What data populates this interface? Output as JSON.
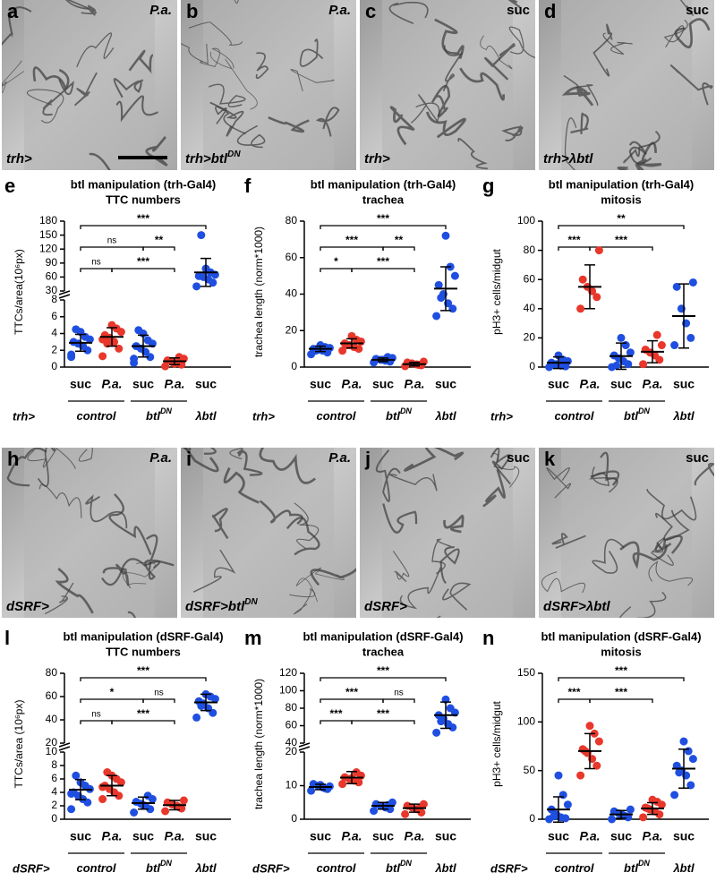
{
  "images": [
    {
      "letter": "a",
      "condition": "P.a.",
      "genotype": "trh>"
    },
    {
      "letter": "b",
      "condition": "P.a.",
      "genotype": "trh>btl",
      "superscript": "DN"
    },
    {
      "letter": "c",
      "condition": "suc",
      "genotype": "trh>"
    },
    {
      "letter": "d",
      "condition": "suc",
      "genotype": "trh>λbtl"
    },
    {
      "letter": "h",
      "condition": "P.a.",
      "genotype": "dSRF>"
    },
    {
      "letter": "i",
      "condition": "P.a.",
      "genotype": "dSRF>btl",
      "superscript": "DN"
    },
    {
      "letter": "j",
      "condition": "suc",
      "genotype": "dSRF>"
    },
    {
      "letter": "k",
      "condition": "suc",
      "genotype": "dSRF>λbtl"
    }
  ],
  "chart_data": [
    {
      "type": "dotplot",
      "panel": "e",
      "title": [
        "btl manipulation (trh-Gal4)",
        "TTC numbers"
      ],
      "ylabel": "TTCs/area(10⁶px)",
      "genotype": "trh>",
      "categories": [
        "suc",
        "P.a.",
        "suc",
        "P.a.",
        "suc"
      ],
      "groups": [
        {
          "label": "control",
          "categories": [
            0,
            1
          ]
        },
        {
          "label": "btl",
          "superscript": "DN",
          "categories": [
            2,
            3
          ]
        },
        {
          "label": "λbtl",
          "categories": [
            4
          ]
        }
      ],
      "point_colors": [
        "#1f4fe0",
        "#e8372b",
        "#1f4fe0",
        "#e8372b",
        "#1f4fe0"
      ],
      "axis_segments": [
        {
          "ylim": [
            0,
            8
          ],
          "yticks": [
            0,
            2,
            4,
            6,
            8
          ]
        },
        {
          "ylim": [
            30,
            180
          ],
          "yticks": [
            30,
            60,
            90,
            120,
            150,
            180
          ]
        }
      ],
      "points": [
        [
          1.2,
          2.0,
          2.5,
          2.8,
          3.0,
          3.3,
          3.6,
          4.2,
          4.5,
          1.5
        ],
        [
          1.3,
          2.2,
          3.0,
          3.5,
          3.8,
          4.2,
          4.6,
          5.0,
          2.8,
          3.3
        ],
        [
          0.5,
          1.2,
          1.8,
          2.2,
          2.5,
          2.8,
          3.2,
          4.0,
          4.4,
          1.0
        ],
        [
          0.1,
          0.3,
          0.5,
          0.6,
          0.8,
          1.0,
          1.2,
          0.4
        ],
        [
          40,
          48,
          55,
          60,
          62,
          65,
          70,
          78,
          150
        ]
      ],
      "mean": [
        2.9,
        3.6,
        2.5,
        0.7,
        70
      ],
      "sd": [
        1.0,
        1.1,
        1.3,
        0.4,
        30
      ],
      "comparisons": [
        [
          {
            "from": 0,
            "to": 4,
            "label": "***"
          }
        ],
        [
          {
            "from": 0,
            "to": 2,
            "label": "ns"
          },
          {
            "from": 2,
            "to": 3,
            "label": "**"
          }
        ],
        [
          {
            "from": 0,
            "to": 1,
            "label": "ns"
          },
          {
            "from": 1,
            "to": 3,
            "label": "***"
          }
        ]
      ]
    },
    {
      "type": "dotplot",
      "panel": "f",
      "title": [
        "btl manipulation (trh-Gal4)",
        "trachea"
      ],
      "ylabel": "trachea length (norm*1000)",
      "genotype": "trh>",
      "categories": [
        "suc",
        "P.a.",
        "suc",
        "P.a.",
        "suc"
      ],
      "groups": [
        {
          "label": "control",
          "categories": [
            0,
            1
          ]
        },
        {
          "label": "btl",
          "superscript": "DN",
          "categories": [
            2,
            3
          ]
        },
        {
          "label": "λbtl",
          "categories": [
            4
          ]
        }
      ],
      "point_colors": [
        "#1f4fe0",
        "#e8372b",
        "#1f4fe0",
        "#e8372b",
        "#1f4fe0"
      ],
      "axis_segments": [
        {
          "ylim": [
            0,
            80
          ],
          "yticks": [
            0,
            20,
            40,
            60,
            80
          ]
        }
      ],
      "points": [
        [
          7,
          8,
          9,
          9.5,
          10,
          10.5,
          11,
          12,
          9
        ],
        [
          9,
          10,
          11,
          12,
          13,
          14,
          15,
          17,
          12
        ],
        [
          2.5,
          3,
          3.5,
          4,
          4.5,
          5,
          5.5,
          4
        ],
        [
          0.5,
          1,
          1.5,
          2,
          2.5,
          3,
          1.2
        ],
        [
          28,
          32,
          35,
          40,
          45,
          50,
          55,
          72,
          38
        ]
      ],
      "mean": [
        10,
        13,
        4,
        1.6,
        43
      ],
      "sd": [
        1.5,
        2.5,
        1,
        1,
        12
      ],
      "comparisons": [
        [
          {
            "from": 0,
            "to": 4,
            "label": "***"
          }
        ],
        [
          {
            "from": 0,
            "to": 2,
            "label": "***"
          },
          {
            "from": 2,
            "to": 3,
            "label": "**"
          }
        ],
        [
          {
            "from": 0,
            "to": 1,
            "label": "*"
          },
          {
            "from": 1,
            "to": 3,
            "label": "***"
          }
        ]
      ]
    },
    {
      "type": "dotplot",
      "panel": "g",
      "title": [
        "btl manipulation (trh-Gal4)",
        "mitosis"
      ],
      "ylabel": "pH3+ cells/midgut",
      "genotype": "trh>",
      "categories": [
        "suc",
        "P.a.",
        "suc",
        "P.a.",
        "suc"
      ],
      "groups": [
        {
          "label": "control",
          "categories": [
            0,
            1
          ]
        },
        {
          "label": "btl",
          "superscript": "DN",
          "categories": [
            2,
            3
          ]
        },
        {
          "label": "λbtl",
          "categories": [
            4
          ]
        }
      ],
      "point_colors": [
        "#1f4fe0",
        "#e8372b",
        "#1f4fe0",
        "#e8372b",
        "#1f4fe0"
      ],
      "axis_segments": [
        {
          "ylim": [
            0,
            100
          ],
          "yticks": [
            0,
            20,
            40,
            60,
            80,
            100
          ]
        }
      ],
      "points": [
        [
          0,
          0.5,
          1,
          2,
          3,
          4,
          5,
          8,
          1.5
        ],
        [
          40,
          48,
          52,
          55,
          60,
          80
        ],
        [
          0,
          2,
          4,
          6,
          8,
          10,
          15,
          20,
          1
        ],
        [
          2,
          5,
          8,
          10,
          12,
          15,
          22
        ],
        [
          15,
          20,
          30,
          40,
          55,
          58
        ]
      ],
      "mean": [
        3,
        55,
        7.5,
        10.5,
        35
      ],
      "sd": [
        4,
        15,
        9,
        7.5,
        22
      ],
      "comparisons": [
        [
          {
            "from": 0,
            "to": 4,
            "label": "**"
          }
        ],
        [
          {
            "from": 0,
            "to": 1,
            "label": "***"
          },
          {
            "from": 1,
            "to": 3,
            "label": "***"
          }
        ]
      ]
    },
    {
      "type": "dotplot",
      "panel": "l",
      "title": [
        "btl manipulation (dSRF-Gal4)",
        "TTC numbers"
      ],
      "ylabel": "TTCs/area (10⁶px)",
      "genotype": "dSRF>",
      "categories": [
        "suc",
        "P.a.",
        "suc",
        "P.a.",
        "suc"
      ],
      "groups": [
        {
          "label": "control",
          "categories": [
            0,
            1
          ]
        },
        {
          "label": "btl",
          "superscript": "DN",
          "categories": [
            2,
            3
          ]
        },
        {
          "label": "λbtl",
          "categories": [
            4
          ]
        }
      ],
      "point_colors": [
        "#1f4fe0",
        "#e8372b",
        "#1f4fe0",
        "#e8372b",
        "#1f4fe0"
      ],
      "axis_segments": [
        {
          "ylim": [
            0,
            10
          ],
          "yticks": [
            0,
            2,
            4,
            6,
            8,
            10
          ]
        },
        {
          "ylim": [
            20,
            80
          ],
          "yticks": [
            20,
            40,
            60,
            80
          ]
        }
      ],
      "points": [
        [
          1.5,
          2.5,
          3,
          3.5,
          4,
          4.5,
          5,
          5.5,
          6.5,
          3.8
        ],
        [
          3,
          3.5,
          4,
          4.5,
          5,
          5.5,
          6,
          6.5,
          7,
          4.8
        ],
        [
          1,
          1.5,
          2,
          2.3,
          2.6,
          3,
          3.5,
          2.1
        ],
        [
          1.2,
          1.6,
          2,
          2.2,
          2.5,
          2.8,
          1.8
        ],
        [
          42,
          46,
          50,
          54,
          56,
          58,
          60,
          62,
          52
        ]
      ],
      "mean": [
        4.4,
        5,
        2.4,
        2.1,
        55
      ],
      "sd": [
        1.5,
        1.5,
        0.9,
        0.7,
        7
      ],
      "comparisons": [
        [
          {
            "from": 0,
            "to": 4,
            "label": "***"
          }
        ],
        [
          {
            "from": 0,
            "to": 2,
            "label": "*"
          },
          {
            "from": 2,
            "to": 3,
            "label": "ns"
          }
        ],
        [
          {
            "from": 0,
            "to": 1,
            "label": "ns"
          },
          {
            "from": 1,
            "to": 3,
            "label": "***"
          }
        ]
      ]
    },
    {
      "type": "dotplot",
      "panel": "m",
      "title": [
        "btl manipulation (dSRF-Gal4)",
        "trachea"
      ],
      "ylabel": "trachea length (norm*1000)",
      "genotype": "dSRF>",
      "categories": [
        "suc",
        "P.a.",
        "suc",
        "P.a.",
        "suc"
      ],
      "groups": [
        {
          "label": "control",
          "categories": [
            0,
            1
          ]
        },
        {
          "label": "btl",
          "superscript": "DN",
          "categories": [
            2,
            3
          ]
        },
        {
          "label": "λbtl",
          "categories": [
            4
          ]
        }
      ],
      "point_colors": [
        "#1f4fe0",
        "#e8372b",
        "#1f4fe0",
        "#e8372b",
        "#1f4fe0"
      ],
      "axis_segments": [
        {
          "ylim": [
            0,
            20
          ],
          "yticks": [
            0,
            10,
            20
          ]
        },
        {
          "ylim": [
            40,
            120
          ],
          "yticks": [
            40,
            60,
            80,
            100,
            120
          ]
        }
      ],
      "points": [
        [
          8.5,
          9,
          9.5,
          10,
          10.5,
          9.8,
          9.2,
          10.2
        ],
        [
          10.5,
          11,
          11.5,
          12,
          12.5,
          13,
          14,
          12.2
        ],
        [
          2.5,
          3,
          3.5,
          4,
          4.5,
          5,
          4.2
        ],
        [
          1.5,
          2,
          3,
          3.5,
          4,
          4.5,
          3.2
        ],
        [
          52,
          58,
          62,
          68,
          72,
          75,
          80,
          90,
          65
        ]
      ],
      "mean": [
        9.6,
        12.4,
        4,
        3.3,
        72
      ],
      "sd": [
        0.8,
        1.8,
        1,
        1.2,
        15
      ],
      "comparisons": [
        [
          {
            "from": 0,
            "to": 4,
            "label": "***"
          }
        ],
        [
          {
            "from": 0,
            "to": 2,
            "label": "***"
          },
          {
            "from": 2,
            "to": 3,
            "label": "ns"
          }
        ],
        [
          {
            "from": 0,
            "to": 1,
            "label": "***"
          },
          {
            "from": 1,
            "to": 3,
            "label": "***"
          }
        ]
      ]
    },
    {
      "type": "dotplot",
      "panel": "n",
      "title": [
        "btl manipulation (dSRF-Gal4)",
        "mitosis"
      ],
      "ylabel": "pH3+ cells/midgut",
      "genotype": "dSRF>",
      "categories": [
        "suc",
        "P.a.",
        "suc",
        "P.a.",
        "suc"
      ],
      "groups": [
        {
          "label": "control",
          "categories": [
            0,
            1
          ]
        },
        {
          "label": "btl",
          "superscript": "DN",
          "categories": [
            2,
            3
          ]
        },
        {
          "label": "λbtl",
          "categories": [
            4
          ]
        }
      ],
      "point_colors": [
        "#1f4fe0",
        "#e8372b",
        "#1f4fe0",
        "#e8372b",
        "#1f4fe0"
      ],
      "axis_segments": [
        {
          "ylim": [
            0,
            150
          ],
          "yticks": [
            0,
            50,
            100,
            150
          ]
        }
      ],
      "points": [
        [
          0,
          1,
          2,
          5,
          10,
          15,
          25,
          45,
          3
        ],
        [
          45,
          55,
          62,
          68,
          72,
          80,
          88,
          96,
          70
        ],
        [
          0,
          2,
          4,
          6,
          8,
          10,
          3,
          5
        ],
        [
          2,
          5,
          8,
          10,
          12,
          15,
          18,
          20,
          11
        ],
        [
          25,
          35,
          45,
          50,
          55,
          62,
          70,
          80,
          48
        ]
      ],
      "mean": [
        10,
        70,
        5,
        11,
        52
      ],
      "sd": [
        13,
        18,
        4,
        6,
        20
      ],
      "comparisons": [
        [
          {
            "from": 0,
            "to": 4,
            "label": "***"
          }
        ],
        [
          {
            "from": 0,
            "to": 1,
            "label": "***"
          },
          {
            "from": 1,
            "to": 3,
            "label": "***"
          }
        ]
      ]
    }
  ]
}
